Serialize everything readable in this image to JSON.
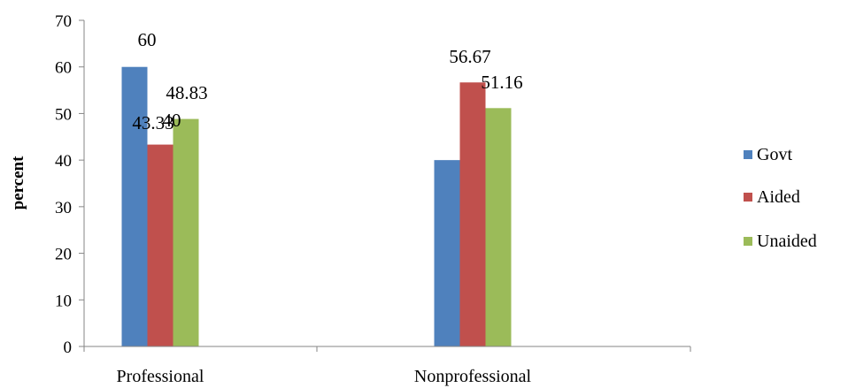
{
  "chart_data": {
    "type": "bar",
    "title": "",
    "xlabel": "",
    "ylabel": "percent",
    "ylim": [
      0,
      70
    ],
    "yticks": [
      0,
      10,
      20,
      30,
      40,
      50,
      60,
      70
    ],
    "grid": false,
    "legend_position": "right",
    "categories": [
      "Professional",
      "Nonprofessional"
    ],
    "series": [
      {
        "name": "Govt",
        "color": "#4f81bd",
        "values": [
          60,
          40
        ],
        "labels": [
          "60",
          "40"
        ]
      },
      {
        "name": "Aided",
        "color": "#c0504d",
        "values": [
          43.33,
          56.67
        ],
        "labels": [
          "43.33",
          "56.67"
        ]
      },
      {
        "name": "Unaided",
        "color": "#9bbb59",
        "values": [
          48.83,
          51.16
        ],
        "labels": [
          "48.83",
          "51.16"
        ]
      }
    ]
  }
}
